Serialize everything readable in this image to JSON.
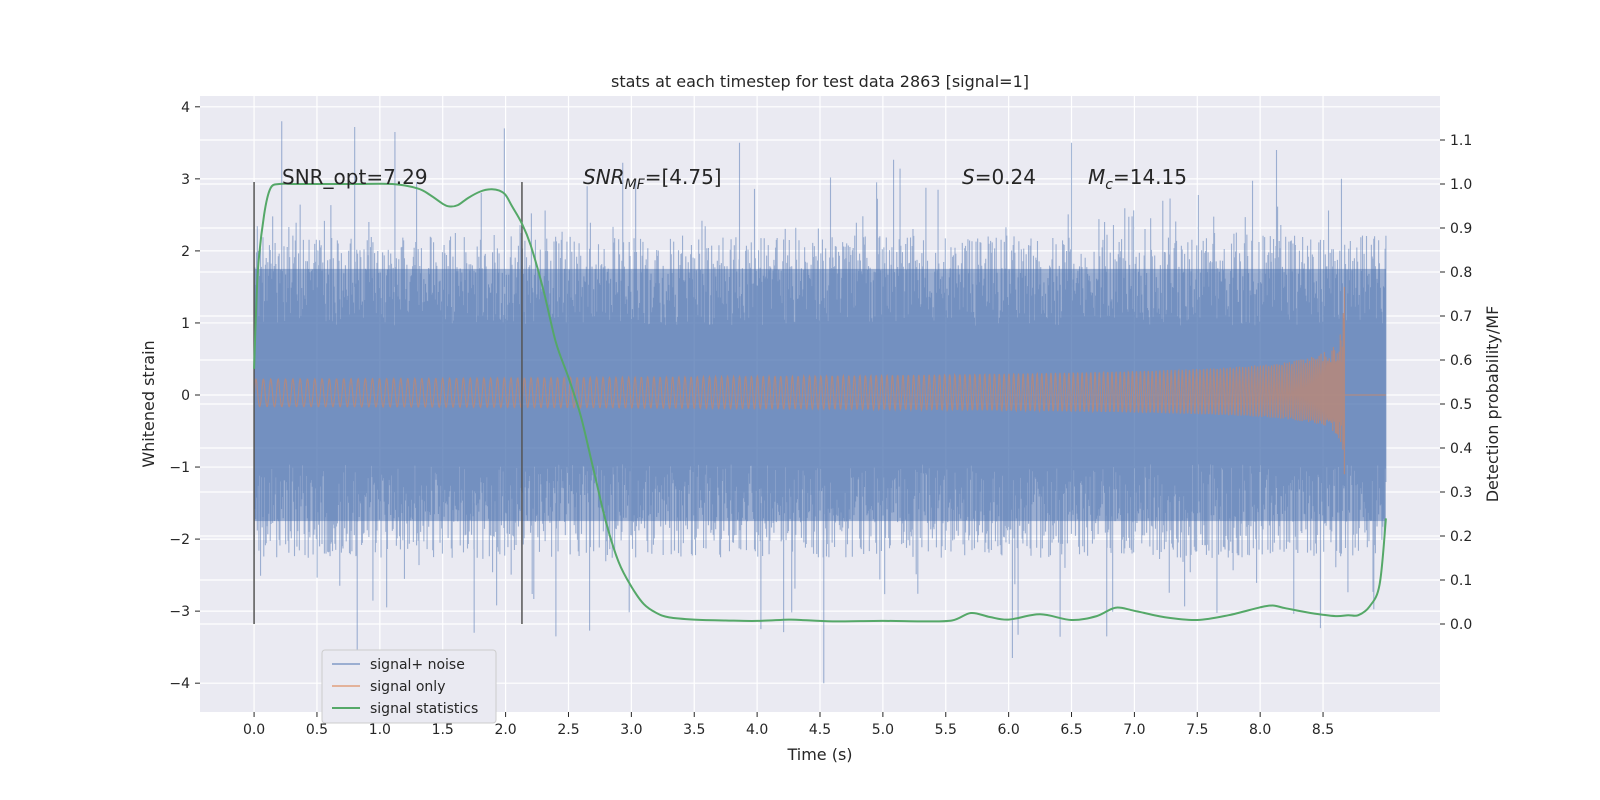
{
  "chart_data": {
    "type": "line",
    "title": "stats at each timestep for test data 2863 [signal=1]",
    "xlabel": "Time (s)",
    "ylabel": "Whitened strain",
    "ylabel_right": "Detection probability/MF",
    "xlim": [
      -0.43,
      9.43
    ],
    "ylim": [
      -4.4,
      4.15
    ],
    "ylim_right": [
      -0.2,
      1.2
    ],
    "x_ticks": [
      "0.0",
      "0.5",
      "1.0",
      "1.5",
      "2.0",
      "2.5",
      "3.0",
      "3.5",
      "4.0",
      "4.5",
      "5.0",
      "5.5",
      "6.0",
      "6.5",
      "7.0",
      "7.5",
      "8.0",
      "8.5"
    ],
    "y_ticks": [
      "4",
      "3",
      "2",
      "1",
      "0",
      "−1",
      "−2",
      "−3",
      "−4"
    ],
    "y_right_ticks": [
      "1.1",
      "1.0",
      "0.9",
      "0.8",
      "0.7",
      "0.6",
      "0.5",
      "0.4",
      "0.3",
      "0.2",
      "0.1",
      "0.0"
    ],
    "annotations": {
      "snr_opt": "SNR_opt=7.29",
      "snr_mf_main": "SNR",
      "snr_mf_sub": "MF",
      "snr_mf_val": "=[4.75]",
      "s_sym": "S",
      "s_val": "=0.24",
      "mc_sym": "M",
      "mc_sub": "c",
      "mc_val": "=14.15"
    },
    "vertical_lines": [
      0.0,
      2.13
    ],
    "legend": {
      "placement": "lower-left",
      "items": [
        "signal+ noise",
        "signal only",
        "signal statistics"
      ]
    },
    "series": [
      {
        "name": "signal+ noise",
        "type": "noise",
        "x_range": [
          0.0,
          9.0
        ],
        "core_amplitude": 1.75,
        "peak_max": 3.8,
        "peak_min": -4.0,
        "color": "#4c72b0"
      },
      {
        "name": "signal only",
        "type": "chirp",
        "x_range": [
          0.0,
          8.67
        ],
        "end_amplitude_top": 1.5,
        "end_amplitude_bottom": -1.1,
        "color": "#dd8452"
      },
      {
        "name": "signal statistics",
        "axis": "right",
        "color": "#55a868",
        "x": [
          0.0,
          0.03,
          0.08,
          0.13,
          0.2,
          0.3,
          0.5,
          0.8,
          1.1,
          1.3,
          1.4,
          1.5,
          1.55,
          1.62,
          1.7,
          1.8,
          1.88,
          1.95,
          2.0,
          2.05,
          2.13,
          2.2,
          2.3,
          2.4,
          2.5,
          2.6,
          2.7,
          2.8,
          2.9,
          3.0,
          3.1,
          3.2,
          3.3,
          3.5,
          3.75,
          4.0,
          4.25,
          4.35,
          4.6,
          5.0,
          5.3,
          5.55,
          5.7,
          5.85,
          6.0,
          6.25,
          6.5,
          6.7,
          6.85,
          7.0,
          7.25,
          7.5,
          7.75,
          8.0,
          8.1,
          8.2,
          8.4,
          8.6,
          8.7,
          8.78,
          8.87,
          8.95,
          9.0
        ],
        "values": [
          0.58,
          0.8,
          0.93,
          0.99,
          1.0,
          1.0,
          1.0,
          1.0,
          1.0,
          0.99,
          0.975,
          0.955,
          0.949,
          0.952,
          0.968,
          0.983,
          0.988,
          0.985,
          0.975,
          0.95,
          0.91,
          0.86,
          0.76,
          0.64,
          0.56,
          0.47,
          0.35,
          0.23,
          0.14,
          0.085,
          0.045,
          0.025,
          0.015,
          0.01,
          0.008,
          0.007,
          0.01,
          0.009,
          0.006,
          0.007,
          0.006,
          0.008,
          0.025,
          0.016,
          0.01,
          0.022,
          0.009,
          0.018,
          0.037,
          0.03,
          0.015,
          0.009,
          0.02,
          0.038,
          0.042,
          0.036,
          0.025,
          0.018,
          0.02,
          0.02,
          0.04,
          0.09,
          0.24
        ]
      }
    ]
  }
}
